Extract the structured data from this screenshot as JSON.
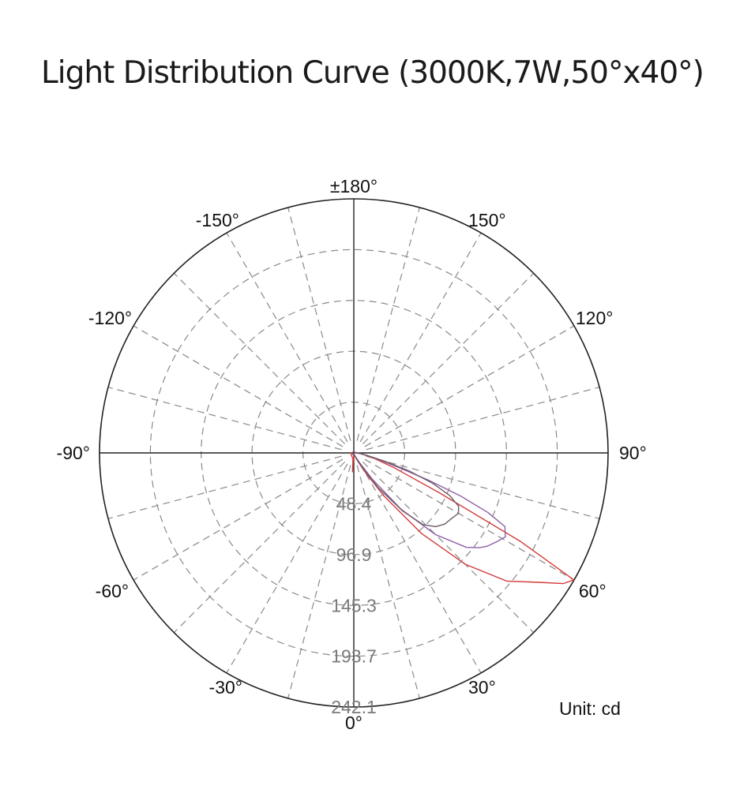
{
  "title": "Light Distribution Curve (3000K,7W,50°x40°)",
  "unit_label": "Unit: cd",
  "chart_data": {
    "type": "polar",
    "title": "Light Distribution Curve (3000K,7W,50°x40°)",
    "unit": "cd",
    "angle_labels": [
      {
        "deg": 180,
        "text": "±180°"
      },
      {
        "deg": -150,
        "text": "-150°"
      },
      {
        "deg": 150,
        "text": "150°"
      },
      {
        "deg": -120,
        "text": "-120°"
      },
      {
        "deg": 120,
        "text": "120°"
      },
      {
        "deg": -90,
        "text": "-90°"
      },
      {
        "deg": 90,
        "text": "90°"
      },
      {
        "deg": -60,
        "text": "-60°"
      },
      {
        "deg": 60,
        "text": "60°"
      },
      {
        "deg": -30,
        "text": "-30°"
      },
      {
        "deg": 30,
        "text": "30°"
      },
      {
        "deg": 0,
        "text": "0°"
      }
    ],
    "radial_ticks": [
      48.4,
      96.9,
      145.3,
      193.7,
      242.1
    ],
    "radial_labels": [
      "48.4",
      "96.9",
      "145.3",
      "193.7",
      "242.1"
    ],
    "rmax": 242.1,
    "spoke_step_deg": 15,
    "grid": true,
    "series": [
      {
        "color": "#d43a3a",
        "points": [
          [
            -8,
            6
          ],
          [
            -4,
            18
          ],
          [
            0,
            2
          ],
          [
            5,
            1
          ],
          [
            10,
            2
          ],
          [
            15,
            2
          ],
          [
            20,
            4
          ],
          [
            25,
            8
          ],
          [
            30,
            20
          ],
          [
            35,
            50
          ],
          [
            40,
            100
          ],
          [
            45,
            150
          ],
          [
            50,
            190
          ],
          [
            55,
            215
          ],
          [
            58,
            235
          ],
          [
            60,
            242
          ],
          [
            62,
            180
          ],
          [
            65,
            90
          ],
          [
            70,
            40
          ],
          [
            75,
            20
          ],
          [
            80,
            10
          ],
          [
            85,
            6
          ],
          [
            90,
            3
          ],
          [
            100,
            2
          ],
          [
            120,
            1
          ],
          [
            150,
            1
          ],
          [
            180,
            1
          ],
          [
            -150,
            1
          ],
          [
            -120,
            1
          ],
          [
            -100,
            2
          ],
          [
            -90,
            3
          ]
        ]
      },
      {
        "color": "#8e5fa8",
        "points": [
          [
            0,
            2
          ],
          [
            10,
            2
          ],
          [
            20,
            3
          ],
          [
            30,
            10
          ],
          [
            35,
            30
          ],
          [
            40,
            70
          ],
          [
            45,
            110
          ],
          [
            50,
            140
          ],
          [
            53,
            150
          ],
          [
            55,
            155
          ],
          [
            58,
            160
          ],
          [
            61,
            165
          ],
          [
            64,
            160
          ],
          [
            66,
            140
          ],
          [
            68,
            110
          ],
          [
            70,
            75
          ],
          [
            72,
            45
          ],
          [
            75,
            25
          ],
          [
            80,
            12
          ],
          [
            85,
            6
          ],
          [
            90,
            3
          ],
          [
            120,
            1
          ],
          [
            180,
            1
          ],
          [
            -120,
            1
          ],
          [
            -90,
            2
          ]
        ]
      },
      {
        "color": "#6e5a66",
        "points": [
          [
            0,
            2
          ],
          [
            10,
            2
          ],
          [
            20,
            3
          ],
          [
            25,
            6
          ],
          [
            30,
            15
          ],
          [
            35,
            40
          ],
          [
            40,
            72
          ],
          [
            44,
            95
          ],
          [
            48,
            105
          ],
          [
            52,
            110
          ],
          [
            56,
            112
          ],
          [
            60,
            115
          ],
          [
            63,
            112
          ],
          [
            66,
            100
          ],
          [
            69,
            80
          ],
          [
            72,
            55
          ],
          [
            75,
            30
          ],
          [
            78,
            15
          ],
          [
            82,
            8
          ],
          [
            86,
            4
          ],
          [
            90,
            2
          ],
          [
            120,
            1
          ],
          [
            180,
            1
          ],
          [
            -120,
            1
          ],
          [
            -90,
            2
          ]
        ]
      }
    ]
  }
}
